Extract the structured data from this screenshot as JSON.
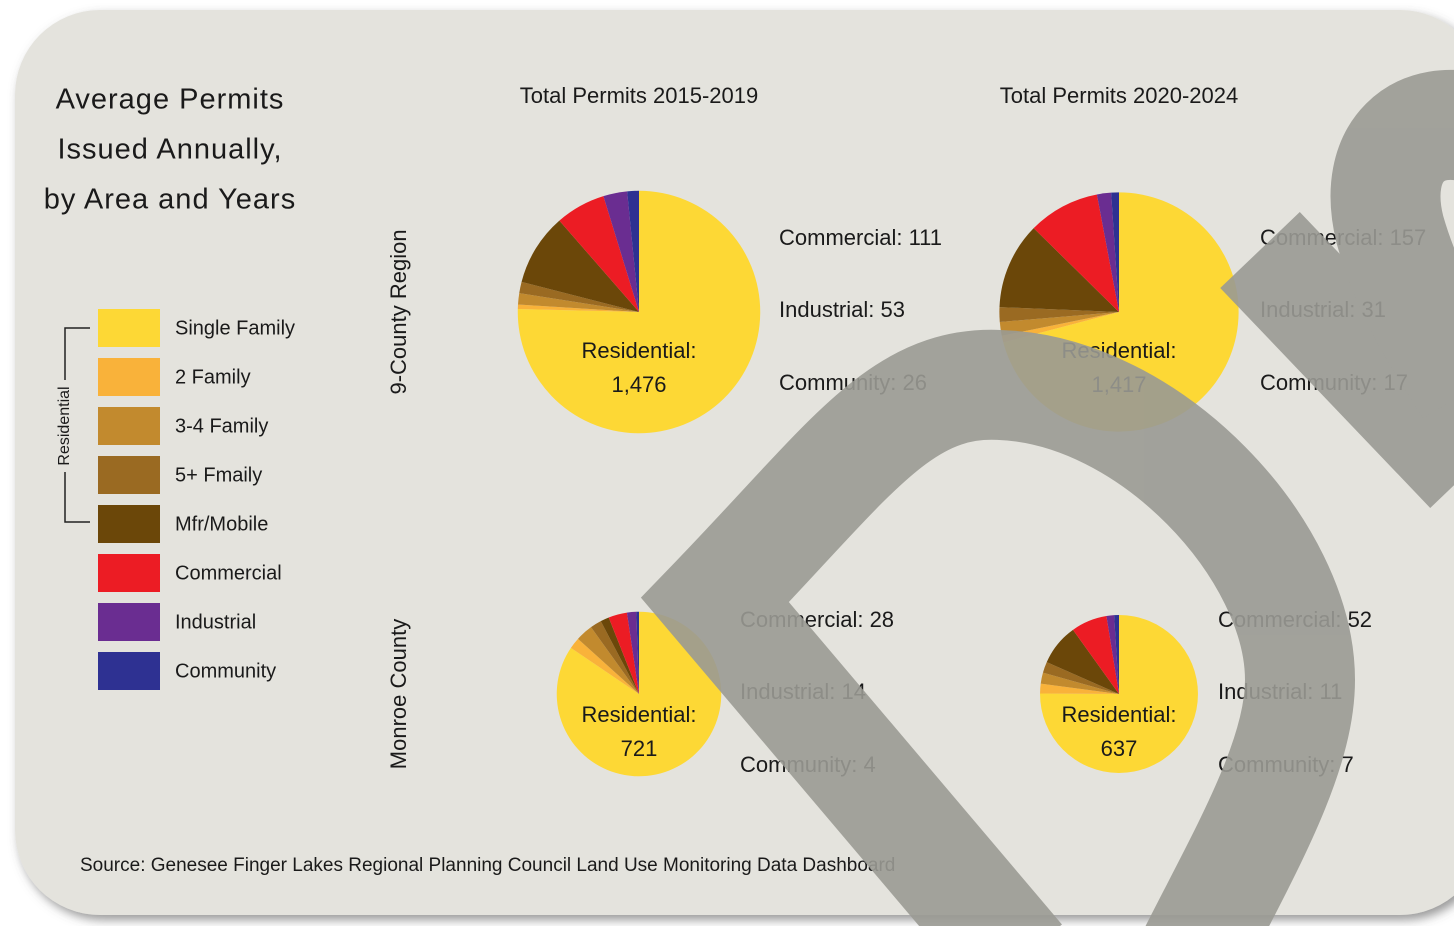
{
  "title_lines": [
    "Average Permits",
    "Issued Annually,",
    "by Area and Years"
  ],
  "legend": {
    "group_label": "Residential",
    "categories": [
      "Single Family",
      "2 Family",
      "3-4 Family",
      "5+ Fmaily",
      "Mfr/Mobile",
      "Commercial",
      "Industrial",
      "Community"
    ],
    "colors": [
      "#fdd835",
      "#f9b23a",
      "#c28a2e",
      "#9a6a22",
      "#6b4709",
      "#ec1c24",
      "#6a2d91",
      "#2e3192"
    ]
  },
  "columns": [
    "Total Permits 2015-2019",
    "Total Permits 2020-2024"
  ],
  "rows": [
    "9-County Region",
    "Monroe County"
  ],
  "chart_data": [
    {
      "type": "pie",
      "values": [
        1256,
        10,
        25,
        25,
        160,
        111,
        53,
        26
      ],
      "residential": [
        "Residential:",
        "1,476"
      ],
      "annotations": [
        "Commercial: 111",
        "Industrial: 53",
        "Community: 26"
      ]
    },
    {
      "type": "pie",
      "values": [
        1150,
        15,
        30,
        32,
        190,
        157,
        31,
        17
      ],
      "residential": [
        "Residential:",
        "1,417"
      ],
      "annotations": [
        "Commercial: 157",
        "Industrial: 31",
        "Community: 17"
      ]
    },
    {
      "type": "pie",
      "values": [
        648,
        17,
        26,
        17,
        13,
        28,
        14,
        4
      ],
      "residential": [
        "Residential:",
        "721"
      ],
      "annotations": [
        "Commercial: 28",
        "Industrial: 14",
        "Community: 4"
      ]
    },
    {
      "type": "pie",
      "values": [
        531,
        14,
        16,
        16,
        60,
        52,
        11,
        7
      ],
      "residential": [
        "Residential:",
        "637"
      ],
      "annotations": [
        "Commercial: 52",
        "Industrial: 11",
        "Community: 7"
      ]
    }
  ],
  "source": "Source: Genesee Finger Lakes Regional Planning Council Land Use Monitoring Data Dashboard"
}
